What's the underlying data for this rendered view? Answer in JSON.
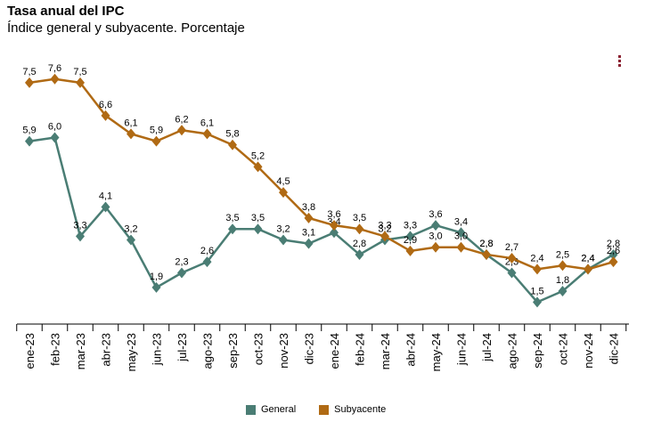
{
  "header": {
    "title": "Tasa anual del IPC",
    "subtitle": "Índice general y subyacente. Porcentaje"
  },
  "chart_data": {
    "type": "line",
    "title": "Tasa anual del IPC",
    "subtitle": "Índice general y subyacente. Porcentaje",
    "categories": [
      "ene-23",
      "feb-23",
      "mar-23",
      "abr-23",
      "may-23",
      "jun-23",
      "jul-23",
      "ago-23",
      "sep-23",
      "oct-23",
      "nov-23",
      "dic-23",
      "ene-24",
      "feb-24",
      "mar-24",
      "abr-24",
      "may-24",
      "jun-24",
      "jul-24",
      "ago-24",
      "sep-24",
      "oct-24",
      "nov-24",
      "dic-24"
    ],
    "series": [
      {
        "name": "General",
        "color": "#4a7d74",
        "values": [
          5.9,
          6.0,
          3.3,
          4.1,
          3.2,
          1.9,
          2.3,
          2.6,
          3.5,
          3.5,
          3.2,
          3.1,
          3.4,
          2.8,
          3.2,
          3.3,
          3.6,
          3.4,
          2.8,
          2.3,
          1.5,
          1.8,
          2.4,
          2.8
        ],
        "labels": [
          "5,9",
          "6,0",
          "3,3",
          "4,1",
          "3,2",
          "1,9",
          "2,3",
          "2,6",
          "3,5",
          "3,5",
          "3,2",
          "3,1",
          "3,4",
          "2,8",
          "3,2",
          "3,3",
          "3,6",
          "3,4",
          "2,8",
          "2,3",
          "1,5",
          "1,8",
          "2,4",
          "2,8"
        ]
      },
      {
        "name": "Subyacente",
        "color": "#b06a14",
        "values": [
          7.5,
          7.6,
          7.5,
          6.6,
          6.1,
          5.9,
          6.2,
          6.1,
          5.8,
          5.2,
          4.5,
          3.8,
          3.6,
          3.5,
          3.3,
          2.9,
          3.0,
          3.0,
          2.8,
          2.7,
          2.4,
          2.5,
          2.4,
          2.6
        ],
        "labels": [
          "7,5",
          "7,6",
          "7,5",
          "6,6",
          "6,1",
          "5,9",
          "6,2",
          "6,1",
          "5,8",
          "5,2",
          "4,5",
          "3,8",
          "3,6",
          "3,5",
          "3,3",
          "2,9",
          "3,0",
          "3,0",
          "2,8",
          "2,7",
          "2,4",
          "2,5",
          "2,4",
          "2,6"
        ]
      }
    ],
    "ylim": [
      0.9,
      8.3
    ],
    "grid": false,
    "legend_position": "bottom"
  }
}
